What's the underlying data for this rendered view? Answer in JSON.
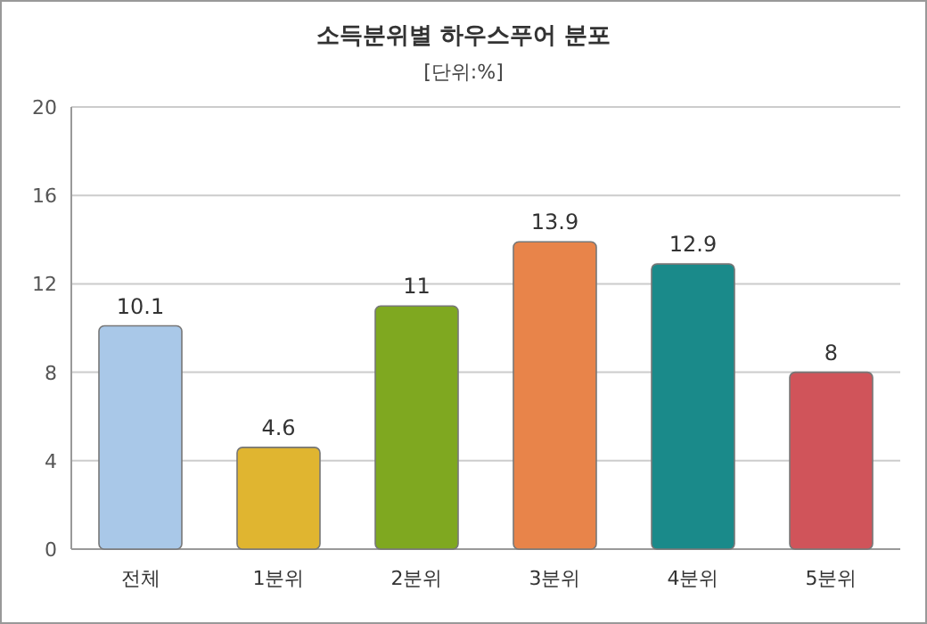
{
  "chart_data": {
    "type": "bar",
    "title": "소득분위별 하우스푸어 분포",
    "subtitle": "[단위:%]",
    "categories": [
      "전체",
      "1분위",
      "2분위",
      "3분위",
      "4분위",
      "5분위"
    ],
    "values": [
      10.1,
      4.6,
      11,
      13.9,
      12.9,
      8
    ],
    "colors": [
      "#a9c8e8",
      "#e0b530",
      "#7fa820",
      "#e8844a",
      "#1a8a8a",
      "#d0545a"
    ],
    "ylim": [
      0,
      20
    ],
    "yticks": [
      0,
      4,
      8,
      12,
      16,
      20
    ],
    "grid": "y",
    "data_labels": true
  }
}
